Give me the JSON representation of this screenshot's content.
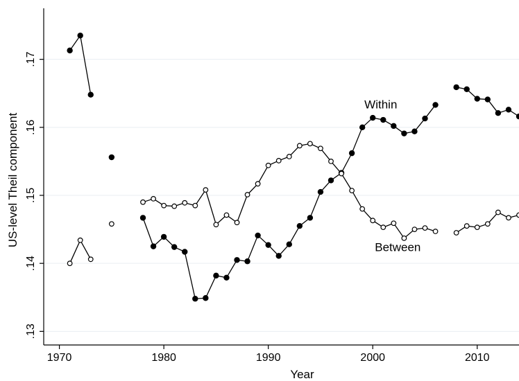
{
  "chart_data": {
    "type": "line",
    "xlabel": "Year",
    "ylabel": "US-level Theil component",
    "xlim": [
      1968.5,
      2014
    ],
    "ylim": [
      0.128,
      0.1775
    ],
    "x_ticks": [
      1970,
      1980,
      1990,
      2000,
      2010
    ],
    "y_ticks": [
      0.13,
      0.14,
      0.15,
      0.16,
      0.17
    ],
    "y_tick_labels": [
      ".13",
      ".14",
      ".15",
      ".16",
      ".17"
    ],
    "grid": true,
    "legend": "none",
    "annotations": [
      {
        "text": "Within",
        "x": 1999.2,
        "y": 0.1628
      },
      {
        "text": "Between",
        "x": 2000.2,
        "y": 0.1418
      }
    ],
    "series": [
      {
        "id": "within",
        "marker": "filled-circle",
        "color": "#000000",
        "x": [
          1971,
          1972,
          1973,
          1975,
          1978,
          1979,
          1980,
          1981,
          1982,
          1983,
          1984,
          1985,
          1986,
          1987,
          1988,
          1989,
          1990,
          1991,
          1992,
          1993,
          1994,
          1995,
          1996,
          1997,
          1998,
          1999,
          2000,
          2001,
          2002,
          2003,
          2004,
          2005,
          2006,
          2008,
          2009,
          2010,
          2011,
          2012,
          2013,
          2014
        ],
        "y": [
          0.1713,
          0.1735,
          0.1648,
          0.1556,
          0.1467,
          0.1425,
          0.1439,
          0.1424,
          0.1417,
          0.1348,
          0.1349,
          0.1382,
          0.1379,
          0.1405,
          0.1403,
          0.1441,
          0.1427,
          0.1411,
          0.1428,
          0.1455,
          0.1467,
          0.1505,
          0.1522,
          0.1533,
          0.1562,
          0.16,
          0.1614,
          0.1611,
          0.1602,
          0.1591,
          0.1594,
          0.1613,
          0.1633,
          0.1659,
          0.1656,
          0.1642,
          0.1641,
          0.1621,
          0.1626,
          0.1616
        ],
        "segments": [
          [
            0,
            2
          ],
          [
            4,
            32
          ],
          [
            33,
            39
          ]
        ]
      },
      {
        "id": "between",
        "marker": "hollow-circle",
        "color": "#000000",
        "x": [
          1971,
          1972,
          1973,
          1975,
          1978,
          1979,
          1980,
          1981,
          1982,
          1983,
          1984,
          1985,
          1986,
          1987,
          1988,
          1989,
          1990,
          1991,
          1992,
          1993,
          1994,
          1995,
          1996,
          1997,
          1998,
          1999,
          2000,
          2001,
          2002,
          2003,
          2004,
          2005,
          2006,
          2008,
          2009,
          2010,
          2011,
          2012,
          2013,
          2014
        ],
        "y": [
          0.14,
          0.1434,
          0.1406,
          0.1458,
          0.149,
          0.1495,
          0.1485,
          0.1484,
          0.1489,
          0.1485,
          0.1508,
          0.1457,
          0.1471,
          0.146,
          0.1501,
          0.1517,
          0.1544,
          0.1551,
          0.1557,
          0.1573,
          0.1576,
          0.1569,
          0.155,
          0.1532,
          0.1507,
          0.148,
          0.1463,
          0.1453,
          0.1459,
          0.1437,
          0.145,
          0.1452,
          0.1447,
          0.1445,
          0.1455,
          0.1453,
          0.1458,
          0.1475,
          0.1467,
          0.1471
        ],
        "segments": [
          [
            0,
            2
          ],
          [
            4,
            32
          ],
          [
            33,
            39
          ]
        ]
      }
    ]
  }
}
